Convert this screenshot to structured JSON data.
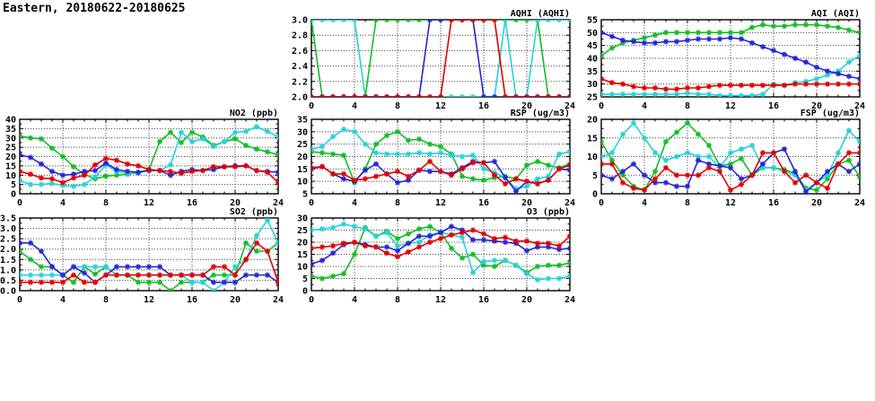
{
  "page_title": "Eastern, 20180622-20180625",
  "colors": {
    "red": "#e00000",
    "green": "#12bd26",
    "blue": "#2525d5",
    "cyan": "#23d2d8"
  },
  "chart_data": [
    {
      "id": "aqhi",
      "type": "line",
      "title": "AQHI (AQHI)",
      "grid": {
        "row": 0,
        "col": 1
      },
      "xlim": [
        0,
        24
      ],
      "xstep": 4,
      "ylim": [
        2.0,
        3.0
      ],
      "ystep": 0.2,
      "ydec": 1,
      "x_interval": 1,
      "xticks": [
        "0",
        "4",
        "8",
        "12",
        "16",
        "20",
        "24"
      ],
      "yticks": [
        "2.0",
        "2.2",
        "2.4",
        "2.6",
        "2.8",
        "3.0"
      ],
      "series": [
        {
          "name": "green",
          "color": "green",
          "values": [
            3,
            2,
            2,
            2,
            2,
            2,
            3,
            3,
            3,
            3,
            3,
            3,
            3,
            3,
            3,
            3,
            3,
            3,
            3,
            3,
            3,
            3,
            2,
            2,
            2
          ]
        },
        {
          "name": "cyan",
          "color": "cyan",
          "values": [
            3,
            3,
            3,
            3,
            3,
            2,
            2,
            2,
            2,
            2,
            2,
            2,
            2,
            2,
            2,
            2,
            2,
            2,
            3,
            2,
            2,
            3,
            3,
            3,
            3
          ]
        },
        {
          "name": "blue",
          "color": "blue",
          "values": [
            2,
            2,
            2,
            2,
            2,
            2,
            2,
            2,
            2,
            2,
            2,
            3,
            3,
            3,
            3,
            3,
            2,
            2,
            2,
            2,
            2,
            2,
            2,
            2,
            2
          ]
        },
        {
          "name": "red",
          "color": "red",
          "values": [
            2,
            2,
            2,
            2,
            2,
            2,
            2,
            2,
            2,
            2,
            2,
            2,
            2,
            3,
            3,
            3,
            3,
            3,
            2,
            2,
            2,
            2,
            2,
            2,
            2
          ]
        }
      ]
    },
    {
      "id": "aqi",
      "type": "line",
      "title": "AQI (AQI)",
      "grid": {
        "row": 0,
        "col": 2
      },
      "xlim": [
        0,
        24
      ],
      "xstep": 4,
      "ylim": [
        25,
        55
      ],
      "ystep": 5,
      "ydec": 0,
      "x_interval": 1,
      "xticks": [
        "0",
        "4",
        "8",
        "12",
        "16",
        "20",
        "24"
      ],
      "yticks": [
        "25",
        "30",
        "35",
        "40",
        "45",
        "50",
        "55"
      ],
      "series": [
        {
          "name": "green",
          "color": "green",
          "values": [
            41,
            44,
            46,
            47,
            48,
            49,
            50,
            50,
            50,
            50,
            50,
            50,
            50,
            50,
            52,
            53,
            52.5,
            52.5,
            53,
            53,
            53,
            52.5,
            52,
            51,
            50
          ]
        },
        {
          "name": "cyan",
          "color": "cyan",
          "values": [
            26,
            26,
            26,
            26,
            26,
            26,
            26,
            26,
            26.5,
            26,
            26,
            25.5,
            25.5,
            25.5,
            25.5,
            26,
            30,
            29.5,
            30.5,
            31,
            32,
            33.5,
            35,
            38.5,
            41
          ]
        },
        {
          "name": "blue",
          "color": "blue",
          "values": [
            50,
            48.5,
            47,
            46.5,
            46,
            46,
            46.5,
            46.5,
            47,
            47.5,
            47.5,
            47.5,
            48,
            47.5,
            46,
            44.5,
            43,
            41.5,
            40,
            38.5,
            36.5,
            35,
            34,
            33,
            32
          ]
        },
        {
          "name": "red",
          "color": "red",
          "values": [
            32,
            30.5,
            30,
            29,
            28.5,
            28.5,
            28,
            28,
            28.5,
            28.5,
            29,
            29.5,
            29.5,
            29.5,
            29.5,
            29.5,
            29.5,
            29.5,
            30,
            30,
            30,
            30,
            30,
            30,
            30
          ]
        }
      ]
    },
    {
      "id": "no2",
      "type": "line",
      "title": "NO2 (ppb)",
      "grid": {
        "row": 1,
        "col": 0
      },
      "xlim": [
        0,
        24
      ],
      "xstep": 4,
      "ylim": [
        0,
        40
      ],
      "ystep": 5,
      "ydec": 0,
      "x_interval": 1,
      "xticks": [
        "0",
        "4",
        "8",
        "12",
        "16",
        "20",
        "24"
      ],
      "yticks": [
        "0",
        "5",
        "10",
        "15",
        "20",
        "25",
        "30",
        "35",
        "40"
      ],
      "series": [
        {
          "name": "green",
          "color": "green",
          "values": [
            31,
            30,
            29.5,
            24.5,
            20,
            14.5,
            10.5,
            8,
            9.5,
            10,
            10.5,
            11.5,
            13,
            28,
            33,
            27.5,
            33,
            30.5,
            26,
            28,
            29.5,
            26,
            24,
            22.5,
            21
          ]
        },
        {
          "name": "cyan",
          "color": "cyan",
          "values": [
            7,
            5,
            5,
            5.5,
            4.5,
            4,
            5,
            9,
            15.5,
            12,
            11,
            11,
            13,
            12.5,
            15.5,
            33,
            28,
            29.5,
            25.5,
            28,
            33,
            33.5,
            36,
            33.5,
            30.5
          ]
        },
        {
          "name": "blue",
          "color": "blue",
          "values": [
            21,
            19.5,
            16,
            12,
            10,
            10.5,
            12,
            12.5,
            16.5,
            13,
            12,
            11.5,
            12.5,
            12.5,
            10,
            12,
            13,
            12.5,
            13,
            14.5,
            15,
            15,
            12.5,
            12,
            11.5
          ]
        },
        {
          "name": "red",
          "color": "red",
          "values": [
            12,
            10.5,
            8.5,
            8,
            6,
            8.5,
            10,
            15.5,
            19,
            18,
            16,
            15,
            13,
            12.5,
            12,
            11,
            12,
            12.5,
            14.5,
            14.5,
            14.5,
            15,
            12.5,
            11.5,
            6
          ]
        }
      ]
    },
    {
      "id": "rsp",
      "type": "line",
      "title": "RSP (ug/m3)",
      "grid": {
        "row": 1,
        "col": 1
      },
      "xlim": [
        0,
        24
      ],
      "xstep": 4,
      "ylim": [
        5,
        35
      ],
      "ystep": 5,
      "ydec": 0,
      "x_interval": 1,
      "xticks": [
        "0",
        "4",
        "8",
        "12",
        "16",
        "20",
        "24"
      ],
      "yticks": [
        "5",
        "10",
        "15",
        "20",
        "25",
        "30",
        "35"
      ],
      "series": [
        {
          "name": "green",
          "color": "green",
          "values": [
            22,
            21.5,
            21,
            20.5,
            9.5,
            15,
            25,
            28.5,
            30,
            26.5,
            27,
            25,
            24,
            21,
            12,
            11,
            10.5,
            11.5,
            12,
            11,
            16.5,
            18,
            16.5,
            15.5,
            17
          ]
        },
        {
          "name": "cyan",
          "color": "cyan",
          "values": [
            23,
            24,
            28,
            31,
            30,
            25,
            21.5,
            21,
            21,
            21,
            21.5,
            21,
            21.5,
            20.5,
            20,
            20.5,
            15,
            13.5,
            11.5,
            7,
            8,
            11,
            12,
            21,
            22
          ]
        },
        {
          "name": "blue",
          "color": "blue",
          "values": [
            15,
            16,
            13,
            11,
            10,
            14.5,
            17,
            13,
            9.5,
            10.5,
            14.5,
            14,
            14,
            13,
            15.5,
            18,
            17.5,
            18,
            11.5,
            6,
            10,
            9,
            10.5,
            15,
            14.5
          ]
        },
        {
          "name": "red",
          "color": "red",
          "values": [
            15.5,
            16,
            13,
            13,
            10.5,
            11,
            12,
            13,
            14,
            12,
            14.5,
            18,
            14,
            12.5,
            15,
            17.5,
            17.5,
            12.5,
            9,
            11,
            10,
            9,
            10.5,
            15,
            16.5
          ]
        }
      ]
    },
    {
      "id": "fsp",
      "type": "line",
      "title": "FSP (ug/m3)",
      "grid": {
        "row": 1,
        "col": 2
      },
      "xlim": [
        0,
        24
      ],
      "xstep": 4,
      "ylim": [
        0,
        20
      ],
      "ystep": 5,
      "ydec": 0,
      "x_interval": 1,
      "xticks": [
        "0",
        "4",
        "8",
        "12",
        "16",
        "20",
        "24"
      ],
      "yticks": [
        "0",
        "5",
        "10",
        "15",
        "20"
      ],
      "series": [
        {
          "name": "green",
          "color": "green",
          "values": [
            14,
            9,
            5,
            2,
            1,
            6,
            14,
            16.5,
            19,
            16,
            13,
            7.5,
            8,
            9.5,
            5,
            7,
            7,
            6.5,
            5.5,
            1.5,
            1,
            4,
            8,
            9,
            4.5
          ]
        },
        {
          "name": "cyan",
          "color": "cyan",
          "values": [
            10,
            11,
            16,
            19,
            15,
            11,
            9,
            10,
            11,
            10,
            10,
            7,
            11,
            12,
            13,
            7,
            7,
            6,
            5,
            1,
            3,
            5,
            11,
            17,
            14
          ]
        },
        {
          "name": "blue",
          "color": "blue",
          "values": [
            5,
            4,
            6,
            8,
            5,
            3,
            3,
            2,
            2,
            9,
            8,
            7.5,
            7,
            4,
            5,
            8,
            11,
            12,
            6,
            0.5,
            3,
            6,
            8,
            6,
            8
          ]
        },
        {
          "name": "red",
          "color": "red",
          "values": [
            8,
            8,
            3,
            1.5,
            1,
            4,
            7,
            5,
            5,
            5,
            7,
            6,
            1,
            2.5,
            5,
            11,
            11,
            6,
            3,
            5,
            3,
            1.5,
            8,
            11,
            11
          ]
        }
      ]
    },
    {
      "id": "so2",
      "type": "line",
      "title": "SO2 (ppb)",
      "grid": {
        "row": 2,
        "col": 0
      },
      "xlim": [
        0,
        24
      ],
      "xstep": 4,
      "ylim": [
        0,
        3.5
      ],
      "ystep": 0.5,
      "ydec": 1,
      "x_interval": 1,
      "xticks": [
        "0",
        "4",
        "8",
        "12",
        "16",
        "20",
        "24"
      ],
      "yticks": [
        "0.0",
        "0.5",
        "1.0",
        "1.5",
        "2.0",
        "2.5",
        "3.0",
        "3.5"
      ],
      "series": [
        {
          "name": "green",
          "color": "green",
          "values": [
            1.9,
            1.5,
            1.15,
            1.15,
            0.75,
            0.4,
            1.15,
            0.8,
            1.15,
            0.75,
            0.75,
            0.4,
            0.4,
            0.4,
            0,
            0.4,
            0.4,
            0.4,
            0.75,
            0.75,
            0.75,
            2.3,
            1.9,
            1.9,
            2.3
          ]
        },
        {
          "name": "cyan",
          "color": "cyan",
          "values": [
            0.75,
            0.75,
            0.75,
            0.75,
            0.75,
            1.15,
            1.15,
            1.15,
            1.15,
            0.75,
            0.75,
            0.75,
            0.75,
            0.75,
            0.75,
            0.75,
            0.4,
            0.4,
            0,
            0.4,
            1.15,
            1.5,
            2.65,
            3.4,
            2.3
          ]
        },
        {
          "name": "blue",
          "color": "blue",
          "values": [
            2.3,
            2.3,
            1.9,
            1.15,
            0.75,
            1.15,
            0.85,
            0.4,
            0.75,
            1.15,
            1.15,
            1.15,
            1.15,
            1.15,
            0.75,
            0.75,
            0.75,
            0.75,
            0.4,
            0.4,
            0.4,
            0.75,
            0.75,
            0.75,
            0.4
          ]
        },
        {
          "name": "red",
          "color": "red",
          "values": [
            0.4,
            0.4,
            0.4,
            0.4,
            0.4,
            0.75,
            0.4,
            0.4,
            0.75,
            0.75,
            0.75,
            0.75,
            0.75,
            0.75,
            0.75,
            0.75,
            0.75,
            0.75,
            1.15,
            1.15,
            0.75,
            1.5,
            2.3,
            1.9,
            0.4
          ]
        }
      ]
    },
    {
      "id": "o3",
      "type": "line",
      "title": "O3 (ppb)",
      "grid": {
        "row": 2,
        "col": 1
      },
      "xlim": [
        0,
        24
      ],
      "xstep": 4,
      "ylim": [
        0,
        30
      ],
      "ystep": 5,
      "ydec": 0,
      "x_interval": 1,
      "xticks": [
        "0",
        "4",
        "8",
        "12",
        "16",
        "20",
        "24"
      ],
      "yticks": [
        "0",
        "5",
        "10",
        "15",
        "20",
        "25",
        "30"
      ],
      "series": [
        {
          "name": "green",
          "color": "green",
          "values": [
            6,
            5,
            6,
            7,
            15,
            26,
            22.5,
            24.5,
            21.5,
            23.5,
            25.5,
            26.5,
            24,
            17.5,
            13.5,
            15,
            10.5,
            10,
            12.5,
            10.5,
            7.5,
            10,
            10.5,
            10.5,
            11.5
          ]
        },
        {
          "name": "cyan",
          "color": "cyan",
          "values": [
            25,
            25.5,
            26,
            27.5,
            26.5,
            25.5,
            22.5,
            24,
            18.5,
            19.5,
            20,
            23,
            24,
            23,
            22,
            7.5,
            12,
            12.5,
            12.5,
            10.5,
            7,
            4.5,
            5,
            5,
            6
          ]
        },
        {
          "name": "blue",
          "color": "blue",
          "values": [
            11,
            12.5,
            15.5,
            19,
            20,
            19,
            18,
            18,
            16.5,
            19.5,
            22.5,
            22.5,
            24,
            26.5,
            25,
            21,
            21,
            20.5,
            20,
            19.5,
            16.5,
            18,
            18,
            17,
            17.5
          ]
        },
        {
          "name": "red",
          "color": "red",
          "values": [
            17.5,
            18,
            18.5,
            19.5,
            20,
            18.5,
            18,
            15.5,
            14,
            16,
            18,
            20,
            21.5,
            23,
            24,
            25,
            23.5,
            21.5,
            22,
            20.5,
            20.5,
            19.5,
            19.5,
            18.5,
            22.5
          ]
        }
      ]
    }
  ]
}
